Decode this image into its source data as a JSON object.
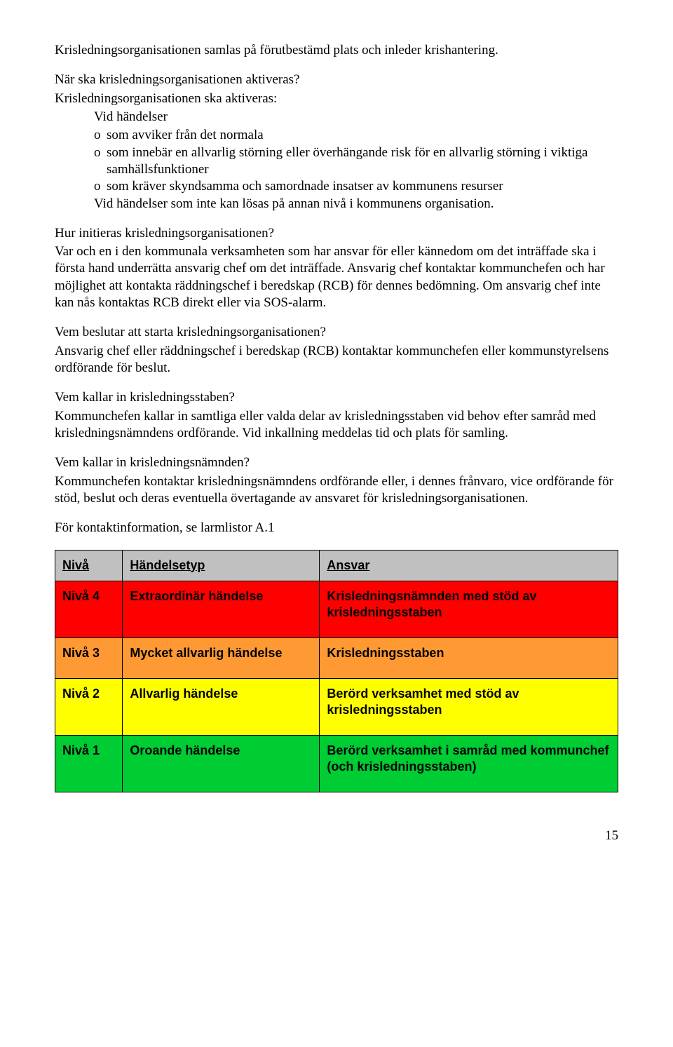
{
  "intro": "Krisledningsorganisationen samlas på förutbestämd plats och inleder krishantering.",
  "q_aktiveras": "När ska krisledningsorganisationen aktiveras?",
  "aktiveras_lead": "Krisledningsorganisationen ska aktiveras:",
  "aktiveras_sub": "Vid händelser",
  "bullets": {
    "b1_pre": "o",
    "b1": "som avviker från det normala",
    "b2_pre": "o",
    "b2": "som innebär en allvarlig störning eller överhängande risk för en allvarlig störning i viktiga samhällsfunktioner",
    "b3_pre": "o",
    "b3": "som kräver skyndsamma och samordnade insatser av kommunens resurser",
    "tail": "Vid händelser som inte kan lösas på annan nivå i kommunens organisation."
  },
  "q_initieras": "Hur initieras krisledningsorganisationen?",
  "initieras_body": "Var och en i den kommunala verksamheten som har ansvar för eller kännedom om det inträffade ska i första hand underrätta ansvarig chef om det inträffade. Ansvarig chef kontaktar kommunchefen och har möjlighet att kontakta räddningschef i beredskap (RCB) för dennes bedömning. Om ansvarig chef inte kan nås kontaktas RCB direkt eller via SOS-alarm.",
  "q_beslutar": "Vem beslutar att starta krisledningsorganisationen?",
  "beslutar_body": "Ansvarig chef eller räddningschef i beredskap (RCB) kontaktar kommunchefen eller kommunstyrelsens ordförande för beslut.",
  "q_staben": "Vem kallar in krisledningsstaben?",
  "staben_body": "Kommunchefen kallar in samtliga eller valda delar av krisledningsstaben vid behov efter samråd med krisledningsnämndens ordförande. Vid inkallning meddelas tid och plats för samling.",
  "q_namnden": "Vem kallar in krisledningsnämnden?",
  "namnden_body": "Kommunchefen kontaktar krisledningsnämndens ordförande eller, i dennes frånvaro, vice ordförande för stöd, beslut och deras eventuella övertagande av ansvaret för krisledningsorganisationen.",
  "kontakt": "För kontaktinformation, se larmlistor A.1",
  "table": {
    "headers": {
      "niva": "Nivå",
      "typ": "Händelsetyp",
      "ansvar": "Ansvar"
    },
    "header_bg": "#c0c0c0",
    "rows": [
      {
        "niva": "Nivå 4",
        "typ": "Extraordinär händelse",
        "ansvar": "Krisledningsnämnden med stöd av krisledningsstaben",
        "bg": "#ff0000"
      },
      {
        "niva": "Nivå 3",
        "typ": "Mycket allvarlig händelse",
        "ansvar": "Krisledningsstaben",
        "bg": "#ff9933"
      },
      {
        "niva": "Nivå 2",
        "typ": "Allvarlig händelse",
        "ansvar": "Berörd verksamhet med stöd av krisledningsstaben",
        "bg": "#ffff00"
      },
      {
        "niva": "Nivå 1",
        "typ": "Oroande händelse",
        "ansvar": "Berörd verksamhet i samråd med kommunchef (och krisledningsstaben)",
        "bg": "#00cc33"
      }
    ]
  },
  "page_number": "15"
}
